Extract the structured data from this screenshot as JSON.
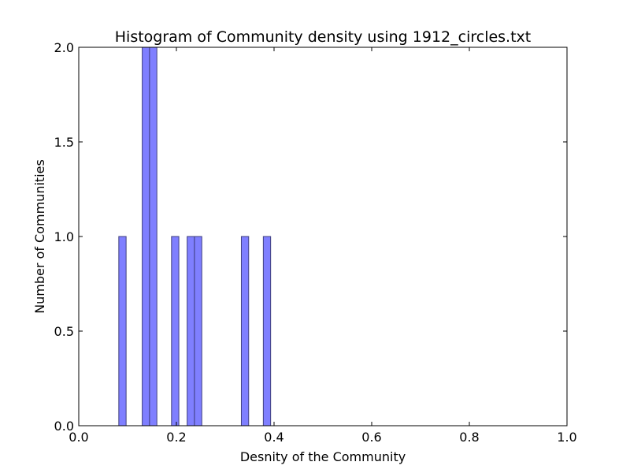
{
  "chart_data": {
    "type": "bar",
    "title": "Histogram of Community density using 1912_circles.txt",
    "xlabel": "Desnity of the Community",
    "ylabel": "Number of Communities",
    "xlim": [
      0.0,
      1.0
    ],
    "ylim": [
      0.0,
      2.0
    ],
    "xticks": [
      "0.0",
      "0.2",
      "0.4",
      "0.6",
      "0.8",
      "1.0"
    ],
    "yticks": [
      "0.0",
      "0.5",
      "1.0",
      "1.5",
      "2.0"
    ],
    "bin_width": 0.015,
    "bins": [
      {
        "x0": 0.082,
        "x1": 0.097,
        "count": 1
      },
      {
        "x0": 0.13,
        "x1": 0.145,
        "count": 2
      },
      {
        "x0": 0.145,
        "x1": 0.16,
        "count": 2
      },
      {
        "x0": 0.19,
        "x1": 0.205,
        "count": 1
      },
      {
        "x0": 0.222,
        "x1": 0.237,
        "count": 1
      },
      {
        "x0": 0.237,
        "x1": 0.252,
        "count": 1
      },
      {
        "x0": 0.333,
        "x1": 0.348,
        "count": 1
      },
      {
        "x0": 0.378,
        "x1": 0.393,
        "count": 1
      }
    ],
    "bar_color": "#7f7fff",
    "bar_edge_color": "#3f3f7f",
    "grid": false,
    "legend": "none"
  }
}
